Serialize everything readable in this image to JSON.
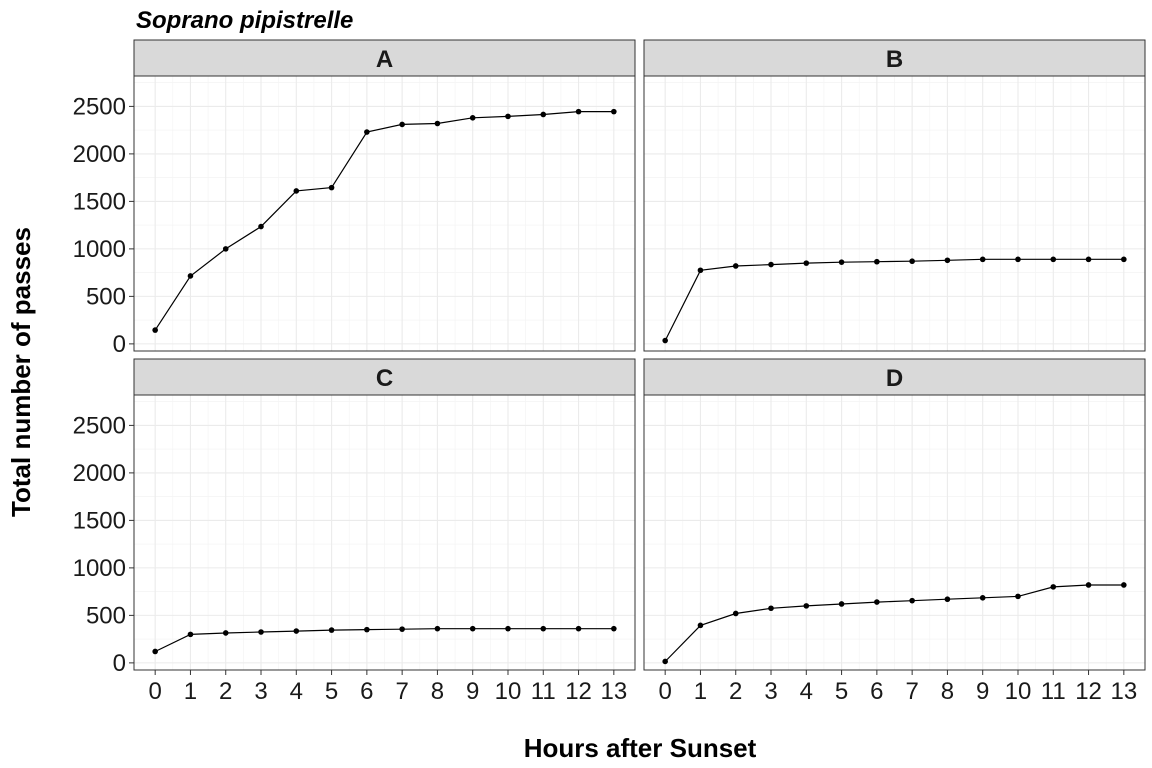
{
  "chart_data": {
    "type": "line",
    "title": "Soprano pipistrelle",
    "xlabel": "Hours after Sunset",
    "ylabel": "Total number of passes",
    "x": [
      0,
      1,
      2,
      3,
      4,
      5,
      6,
      7,
      8,
      9,
      10,
      11,
      12,
      13
    ],
    "xticks": [
      "0",
      "1",
      "2",
      "3",
      "4",
      "5",
      "6",
      "7",
      "8",
      "9",
      "10",
      "11",
      "12",
      "13"
    ],
    "yticks": [
      "0",
      "500",
      "1000",
      "1500",
      "2000",
      "2500"
    ],
    "ylim": [
      -75,
      2820
    ],
    "grid": true,
    "panels": [
      {
        "label": "A",
        "values": [
          145,
          715,
          1000,
          1235,
          1610,
          1645,
          2230,
          2310,
          2320,
          2380,
          2395,
          2415,
          2445,
          2445
        ]
      },
      {
        "label": "B",
        "values": [
          35,
          775,
          820,
          835,
          850,
          860,
          865,
          870,
          880,
          890,
          890,
          890,
          890,
          890
        ]
      },
      {
        "label": "C",
        "values": [
          120,
          300,
          315,
          325,
          335,
          345,
          350,
          355,
          360,
          360,
          360,
          360,
          360,
          360
        ]
      },
      {
        "label": "D",
        "values": [
          15,
          395,
          520,
          575,
          600,
          620,
          640,
          655,
          670,
          685,
          700,
          800,
          820,
          820
        ]
      }
    ],
    "colors": {
      "line": "#000000",
      "point": "#000000",
      "strip_bg": "#d9d9d9",
      "grid": "#ebebeb",
      "panel_border": "#333333"
    }
  }
}
